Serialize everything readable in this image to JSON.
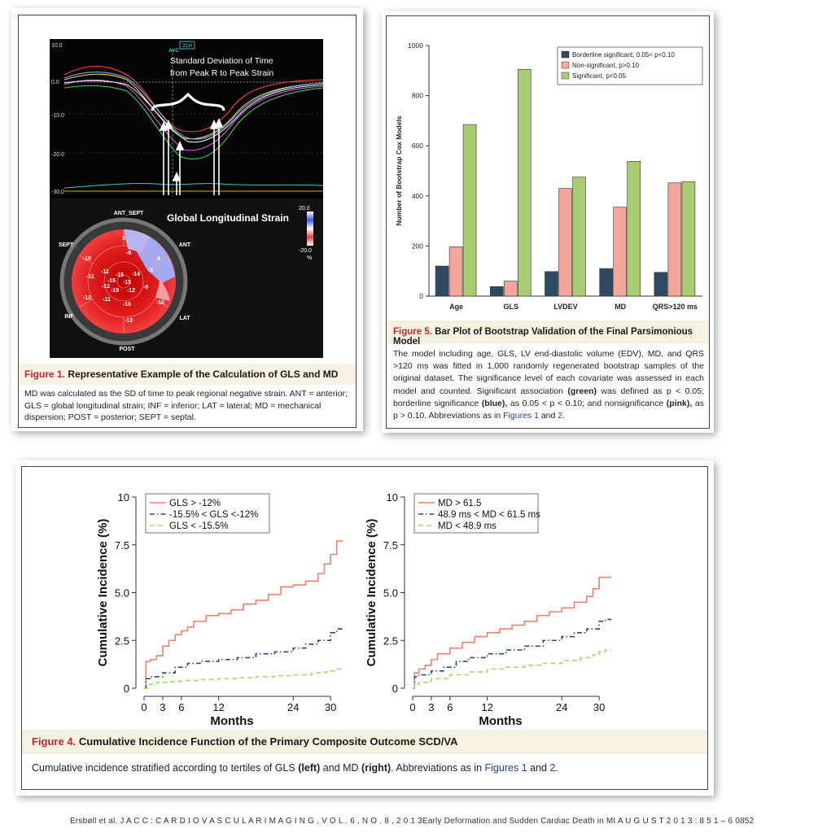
{
  "fig1": {
    "scale_top": "10.0",
    "scale_zero": "0.0",
    "scale_m10": "-10.0",
    "scale_m20": "-20.0",
    "scale_m30": "-30.0",
    "view_tag": "2CH",
    "avc_label": "AVC",
    "annot_line1": "Standard Deviation of Time",
    "annot_line2": "from Peak R to Peak Strain",
    "gls_title": "Global Longitudinal Strain",
    "colorbar_top": "20.0",
    "colorbar_bottom": "-20.0",
    "colorbar_unit": "%",
    "labels": {
      "ant_sept": "ANT_SEPT",
      "ant": "ANT",
      "sept": "SEPT",
      "inf": "INF",
      "lat": "LAT",
      "post": "POST"
    },
    "segments": [
      "3",
      "4",
      "-10",
      "-9",
      "-5",
      "-11",
      "-15",
      "-14",
      "-11",
      "-15",
      "-15",
      "-12",
      "-19",
      "-12",
      "-8",
      "-12",
      "-11",
      "-10",
      "-10",
      "-13"
    ],
    "caption_title_num": "Figure 1.",
    "caption_title_text": "Representative Example of the Calculation of GLS and MD",
    "caption_body": "MD was calculated as the SD of time to peak regional negative strain. ANT = anterior; GLS = global longitudinal strain; INF = inferior; LAT = lateral; MD = mechanical dispersion; POST = posterior; SEPT = septal."
  },
  "fig5": {
    "caption_title_num": "Figure 5.",
    "caption_title_text": "Bar Plot of Bootstrap Validation of the Final Parsimonious Model",
    "caption_body_1": "The model including age, GLS, LV end-diastolic volume (EDV), MD, and QRS >120 ms was fitted in 1,000 randomly regenerated bootstrap samples of the original dataset. The significance level of each covariate was assessed in each model and counted. Significant association ",
    "caption_green": "(green)",
    "caption_body_2": " was defined as p < 0.05; borderline significance ",
    "caption_blue": "(blue),",
    "caption_body_3": " as 0.05 < p < 0.10; and nonsignificance ",
    "caption_pink": "(pink),",
    "caption_body_4": " as p > 0.10. Abbreviations as in ",
    "caption_link1": "Figures 1",
    "caption_and": " and ",
    "caption_link2": "2",
    "caption_end": "."
  },
  "fig4": {
    "caption_title_num": "Figure 4.",
    "caption_title_text": "Cumulative Incidence Function of the Primary Composite Outcome SCD/VA",
    "caption_body_1": "Cumulative incidence stratified according to tertiles of GLS ",
    "caption_left": "(left)",
    "caption_body_2": " and MD ",
    "caption_right": "(right)",
    "caption_body_3": ". Abbreviations as in ",
    "caption_link1": "Figures 1",
    "caption_and": " and ",
    "caption_link2": "2",
    "caption_end": "."
  },
  "footer": "Ersbøll et al. J A C C : C A R D I O V A S C U L A R I M A G I N G , V O L . 6 , N O . 8 , 2 0 1 3Early Deformation and Sudden Cardiac Death in MI A U G U S T 2 0 1 3 : 8 5 1 – 6 0852",
  "colors": {
    "blue": "#2e4a63",
    "pink": "#f3a79a",
    "green": "#a9cc73",
    "red_line": "#f0806e",
    "navy_dash": "#2e4a6a",
    "green_dash": "#a6d86e",
    "fig_red": "#c0272d"
  },
  "chart_data": [
    {
      "type": "bar",
      "categories": [
        "Age",
        "GLS",
        "LVDEV",
        "MD",
        "QRS>120 ms"
      ],
      "ylabel": "Number of Bootstrap Cox Models",
      "xlabel": "",
      "ylim": [
        0,
        1000
      ],
      "yticks": [
        0,
        200,
        400,
        600,
        800,
        1000
      ],
      "grid": false,
      "legend_position": "top-right",
      "series": [
        {
          "name": "Borderline significant, 0.05< p<0.10",
          "color": "#2e4a63",
          "values": [
            120,
            38,
            98,
            110,
            95
          ]
        },
        {
          "name": "Non-significant, p>0.10",
          "color": "#f3a79a",
          "values": [
            197,
            60,
            430,
            355,
            452
          ]
        },
        {
          "name": "Significant, p<0.05",
          "color": "#a9cc73",
          "values": [
            685,
            905,
            475,
            538,
            457
          ]
        }
      ]
    },
    {
      "type": "line",
      "xlabel": "Months",
      "ylabel": "Cumulative Incidence (%)",
      "xlim": [
        0,
        33
      ],
      "ylim": [
        0,
        10
      ],
      "xticks": [
        0,
        3,
        6,
        12,
        24,
        30
      ],
      "yticks": [
        "0",
        "2.5",
        "5.0",
        "7.5",
        "10"
      ],
      "legend_position": "top-left",
      "series": [
        {
          "name": "GLS > -12%",
          "style": "solid",
          "color": "#f0806e",
          "x": [
            0,
            0.3,
            1,
            2,
            3,
            4,
            5,
            6,
            7,
            8,
            10,
            12,
            14,
            16,
            18,
            20,
            22,
            24,
            26,
            28,
            29,
            30,
            31,
            32
          ],
          "y": [
            0,
            1.4,
            1.5,
            1.7,
            2.2,
            2.5,
            2.8,
            3.0,
            3.2,
            3.5,
            3.8,
            3.9,
            4.1,
            4.4,
            4.6,
            4.9,
            5.3,
            5.4,
            5.6,
            6.0,
            6.5,
            7.0,
            7.7,
            7.7
          ]
        },
        {
          "name": "-15.5% < GLS <-12%",
          "style": "dashdot",
          "color": "#2e4a6a",
          "x": [
            0,
            0.3,
            1,
            3,
            5,
            7,
            9,
            12,
            15,
            18,
            21,
            24,
            26,
            28,
            30,
            31,
            32
          ],
          "y": [
            0,
            0.5,
            0.6,
            0.8,
            1.1,
            1.3,
            1.4,
            1.5,
            1.6,
            1.8,
            1.9,
            2.1,
            2.3,
            2.5,
            2.9,
            3.1,
            3.1
          ]
        },
        {
          "name": "GLS < -15.5%",
          "style": "dashed",
          "color": "#a6d86e",
          "x": [
            0,
            0.5,
            2,
            4,
            6,
            9,
            12,
            15,
            18,
            21,
            24,
            27,
            29,
            30,
            31,
            32
          ],
          "y": [
            0,
            0.2,
            0.3,
            0.35,
            0.4,
            0.45,
            0.5,
            0.55,
            0.6,
            0.65,
            0.7,
            0.8,
            0.85,
            0.9,
            1.0,
            1.0
          ]
        }
      ]
    },
    {
      "type": "line",
      "xlabel": "Months",
      "ylabel": "Cumulative Incidence (%)",
      "xlim": [
        0,
        33
      ],
      "ylim": [
        0,
        10
      ],
      "xticks": [
        0,
        3,
        6,
        12,
        24,
        30
      ],
      "yticks": [
        "0",
        "2.5",
        "5.0",
        "7.5",
        "10"
      ],
      "legend_position": "top-left",
      "series": [
        {
          "name": "MD > 61.5",
          "style": "solid",
          "color": "#f0806e",
          "x": [
            0,
            0.3,
            1,
            2,
            3,
            4,
            6,
            8,
            10,
            12,
            14,
            16,
            18,
            20,
            22,
            24,
            26,
            28,
            29,
            30,
            31,
            32
          ],
          "y": [
            0,
            0.8,
            1.0,
            1.2,
            1.5,
            1.8,
            2.1,
            2.4,
            2.7,
            2.9,
            3.1,
            3.3,
            3.5,
            3.8,
            4.0,
            4.2,
            4.5,
            4.8,
            5.2,
            5.8,
            5.8,
            5.8
          ]
        },
        {
          "name": "48.9 ms < MD < 61.5 ms",
          "style": "dashdot",
          "color": "#2e4a6a",
          "x": [
            0,
            0.3,
            1,
            3,
            5,
            7,
            9,
            12,
            15,
            18,
            21,
            24,
            26,
            28,
            30,
            31,
            32
          ],
          "y": [
            0,
            0.6,
            0.7,
            0.9,
            1.1,
            1.4,
            1.6,
            1.8,
            2.0,
            2.2,
            2.5,
            2.7,
            2.9,
            3.1,
            3.5,
            3.6,
            3.6
          ]
        },
        {
          "name": "MD < 48.9 ms",
          "style": "dashed",
          "color": "#a6d86e",
          "x": [
            0,
            0.3,
            1,
            3,
            6,
            9,
            12,
            15,
            18,
            21,
            24,
            27,
            29,
            30,
            31,
            32
          ],
          "y": [
            0,
            0.2,
            0.3,
            0.5,
            0.7,
            0.85,
            1.0,
            1.1,
            1.2,
            1.3,
            1.45,
            1.6,
            1.75,
            1.9,
            2.0,
            2.0
          ]
        }
      ]
    }
  ]
}
